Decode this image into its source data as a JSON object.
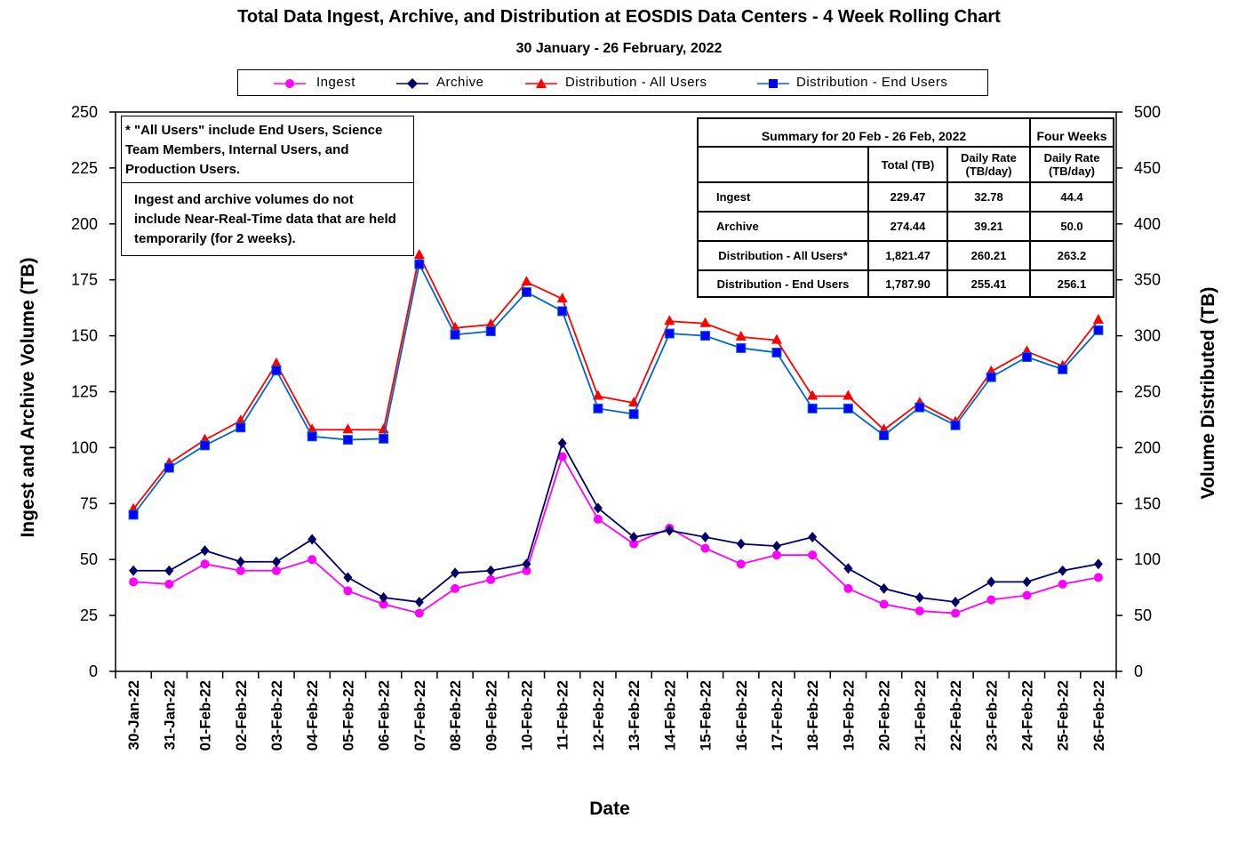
{
  "title": "Total Data Ingest, Archive, and  Distribution at EOSDIS Data Centers - 4 Week Rolling Chart",
  "subtitle": "30  January   -  26  February,  2022",
  "legend": {
    "ingest": "Ingest",
    "archive": "Archive",
    "dist_all": "Distribution - All Users",
    "dist_end": "Distribution - End Users"
  },
  "notes": {
    "all_users": "* \"All Users\" include End Users, Science Team Members,  Internal Users, and Production Users.",
    "nrt": "Ingest and archive volumes do not include Near-Real-Time data that are held temporarily (for 2 weeks)."
  },
  "summary": {
    "header": "Summary  for  20  Feb   - 26  Feb,  2022",
    "four_weeks": "Four Weeks",
    "col_total": "Total (TB)",
    "col_daily": "Daily Rate (TB/day)",
    "col_daily4": "Daily Rate (TB/day)",
    "rows": [
      {
        "label": "Ingest",
        "total": "229.47",
        "daily": "32.78",
        "four": "44.4"
      },
      {
        "label": "Archive",
        "total": "274.44",
        "daily": "39.21",
        "four": "50.0"
      },
      {
        "label": "Distribution - All Users*",
        "total": "1,821.47",
        "daily": "260.21",
        "four": "263.2"
      },
      {
        "label": "Distribution - End Users",
        "total": "1,787.90",
        "daily": "255.41",
        "four": "256.1"
      }
    ]
  },
  "chart_data": {
    "type": "line",
    "categories": [
      "30-Jan-22",
      "31-Jan-22",
      "01-Feb-22",
      "02-Feb-22",
      "03-Feb-22",
      "04-Feb-22",
      "05-Feb-22",
      "06-Feb-22",
      "07-Feb-22",
      "08-Feb-22",
      "09-Feb-22",
      "10-Feb-22",
      "11-Feb-22",
      "12-Feb-22",
      "13-Feb-22",
      "14-Feb-22",
      "15-Feb-22",
      "16-Feb-22",
      "17-Feb-22",
      "18-Feb-22",
      "19-Feb-22",
      "20-Feb-22",
      "21-Feb-22",
      "22-Feb-22",
      "23-Feb-22",
      "24-Feb-22",
      "25-Feb-22",
      "26-Feb-22"
    ],
    "xlabel": "Date",
    "ylabel": "Ingest and Archive Volume (TB)",
    "y2label": "Volume Distributed (TB)",
    "ylim": [
      0,
      250
    ],
    "y2lim": [
      0,
      500
    ],
    "yticks": [
      0,
      25,
      50,
      75,
      100,
      125,
      150,
      175,
      200,
      225,
      250
    ],
    "y2ticks": [
      0,
      50,
      100,
      150,
      200,
      250,
      300,
      350,
      400,
      450,
      500
    ],
    "series": [
      {
        "name": "Ingest",
        "axis": "left",
        "color": "#ff00ff",
        "marker": "circle",
        "values": [
          40,
          39,
          48,
          45,
          45,
          50,
          36,
          30,
          26,
          37,
          41,
          45,
          96,
          68,
          57,
          64,
          55,
          48,
          52,
          52,
          37,
          30,
          27,
          26,
          32,
          34,
          39,
          42
        ]
      },
      {
        "name": "Archive",
        "axis": "left",
        "color": "#000066",
        "marker": "diamond",
        "values": [
          45,
          45,
          54,
          49,
          49,
          59,
          42,
          33,
          31,
          44,
          45,
          48,
          102,
          73,
          60,
          63,
          60,
          57,
          56,
          60,
          46,
          37,
          33,
          31,
          40,
          40,
          45,
          48
        ]
      },
      {
        "name": "Distribution - All Users",
        "axis": "right",
        "color": "#ff0000",
        "marker": "triangle",
        "values": [
          145,
          186,
          207,
          224,
          275,
          216,
          216,
          216,
          372,
          307,
          310,
          348,
          333,
          246,
          240,
          313,
          311,
          299,
          296,
          246,
          246,
          216,
          240,
          223,
          268,
          286,
          273,
          314
        ]
      },
      {
        "name": "Distribution - End Users",
        "axis": "right",
        "color": "#0066cc",
        "marker": "square",
        "values": [
          140,
          182,
          202,
          218,
          269,
          210,
          207,
          208,
          364,
          301,
          304,
          339,
          322,
          235,
          230,
          302,
          300,
          289,
          285,
          235,
          235,
          211,
          236,
          220,
          263,
          281,
          270,
          305
        ]
      }
    ]
  }
}
